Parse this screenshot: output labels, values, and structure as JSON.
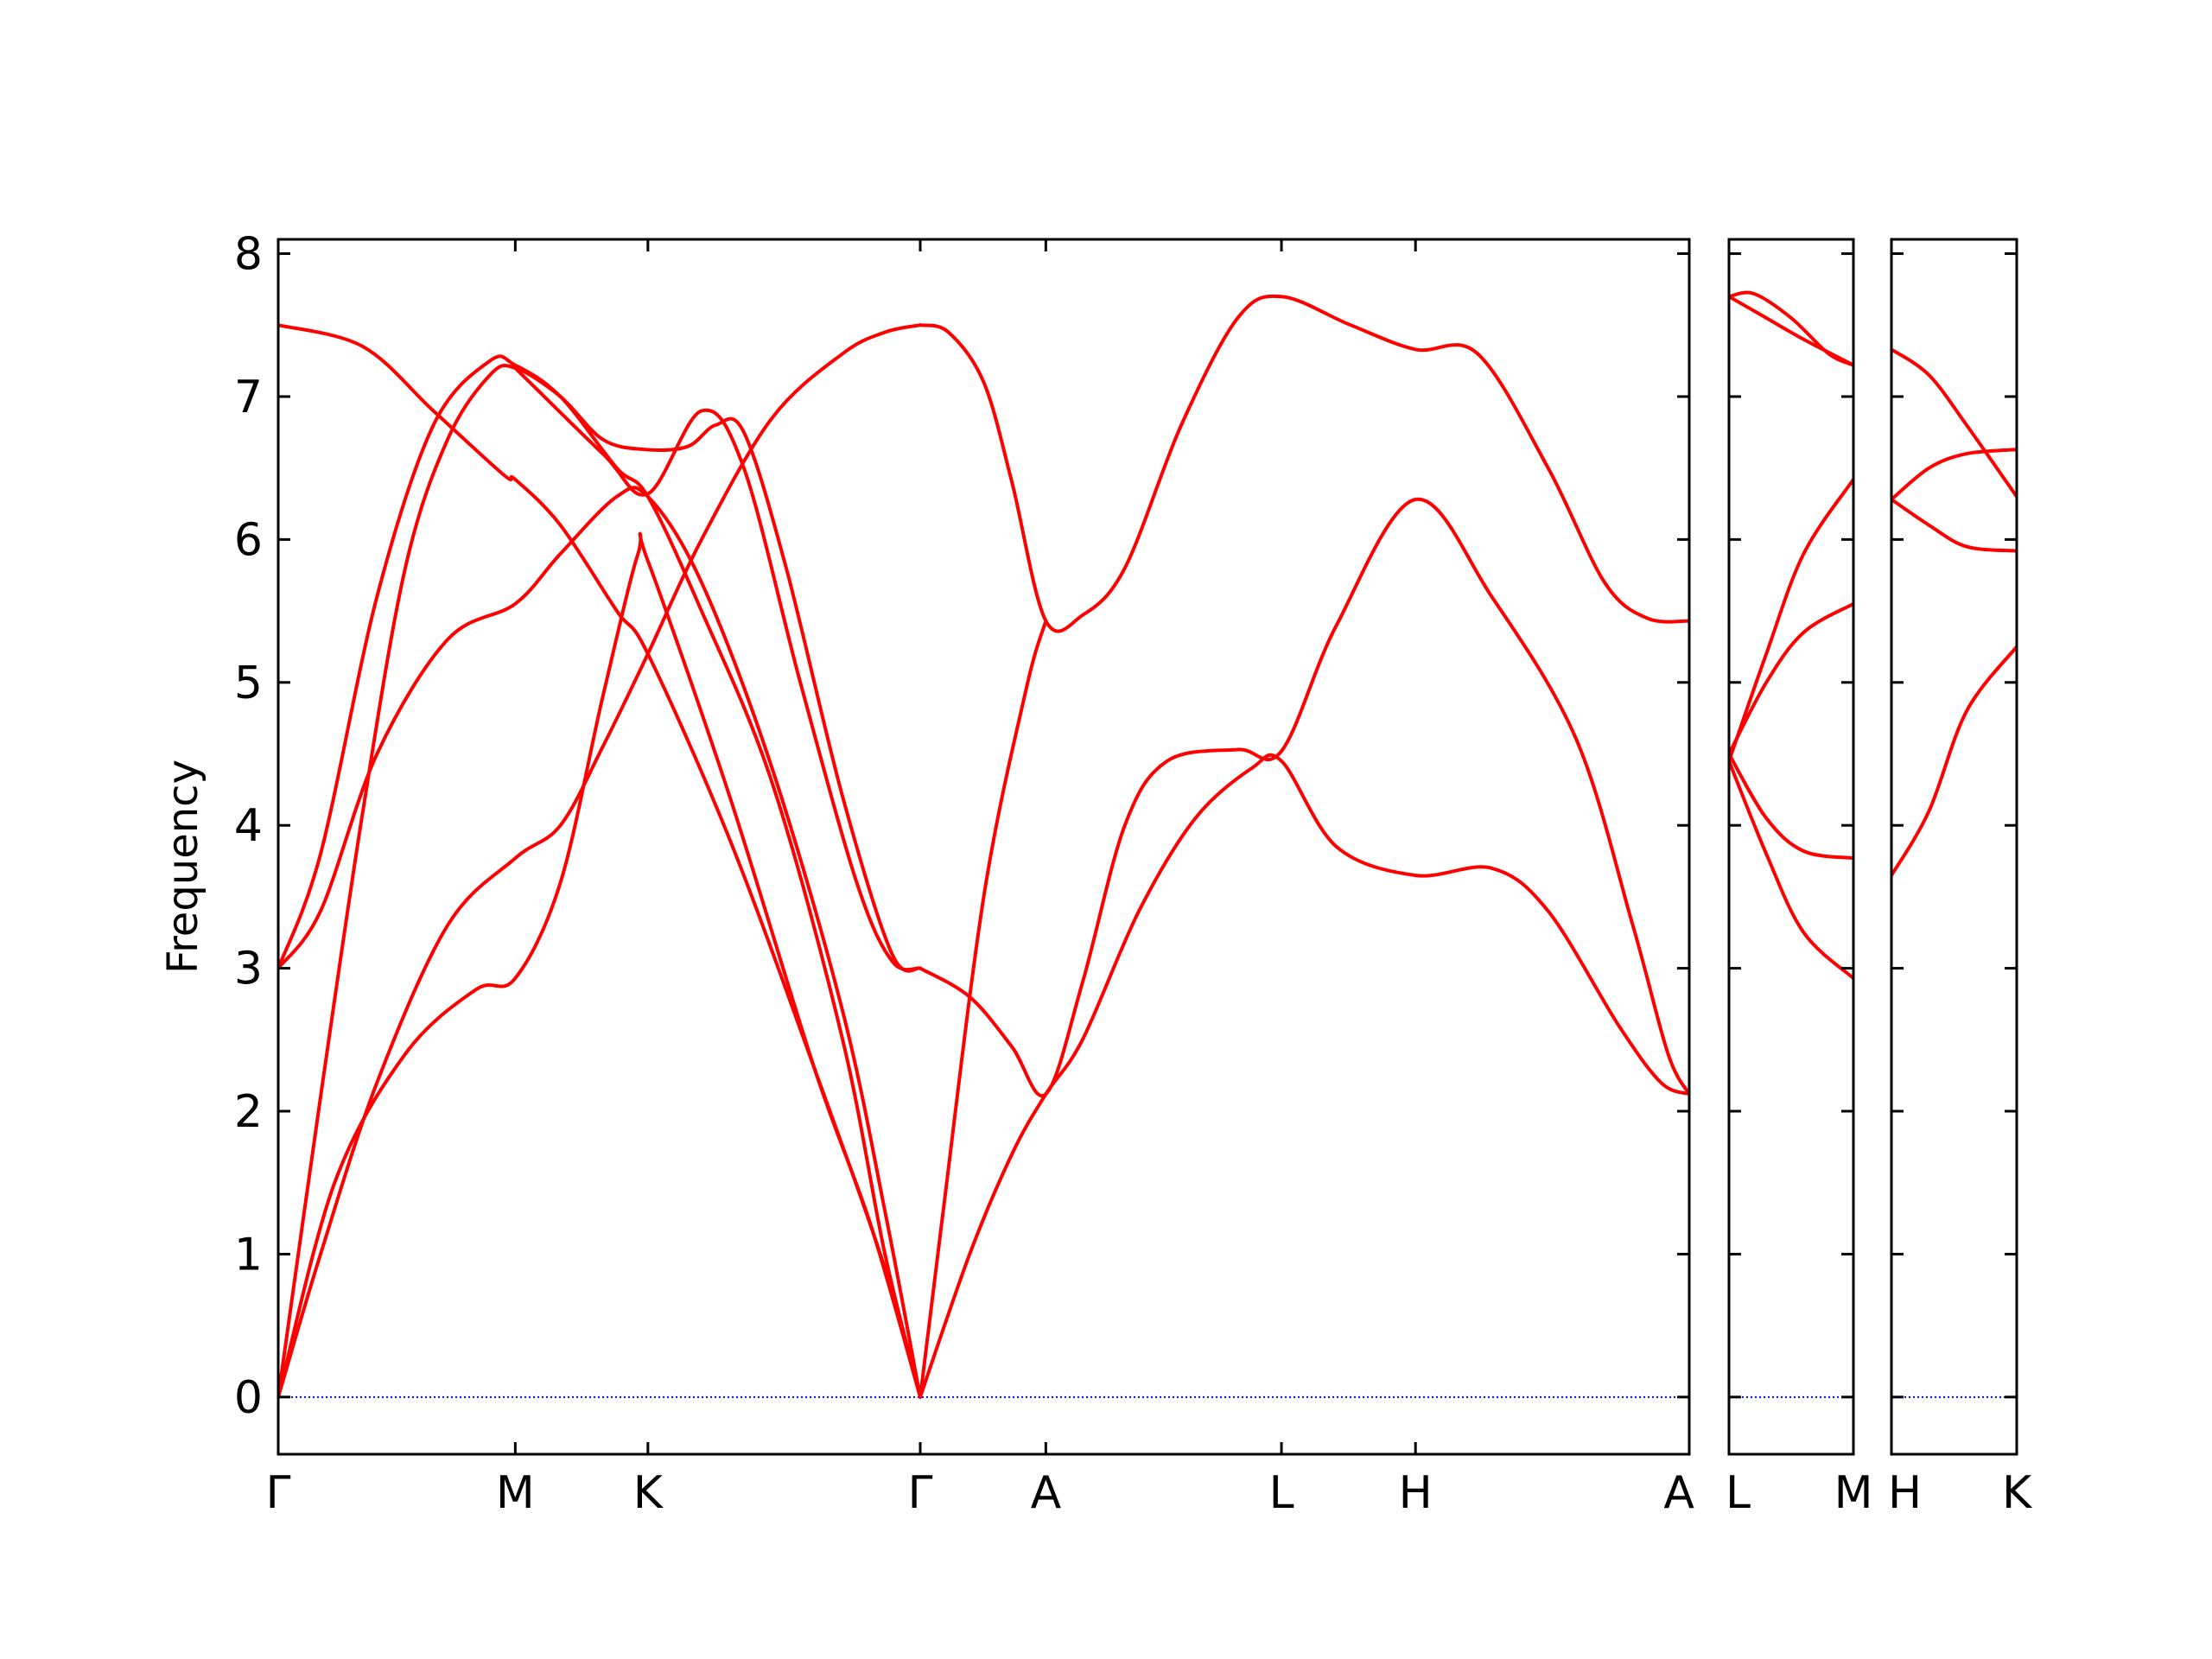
{
  "chart_data": {
    "type": "line",
    "title": "",
    "ylabel": "Frequency",
    "ylim": [
      -0.4,
      8.1
    ],
    "yticks": [
      0,
      1,
      2,
      3,
      4,
      5,
      6,
      7,
      8
    ],
    "grid": false,
    "legend": "none",
    "colors": {
      "bands": "#ff0000",
      "zero_line": "#0000ff",
      "axes": "#000000"
    },
    "x_range_note": "",
    "panels": [
      {
        "xlim": [
          0,
          10.0
        ],
        "ticks": [
          {
            "x": 0.0,
            "label": "Γ"
          },
          {
            "x": 1.68,
            "label": "M"
          },
          {
            "x": 2.62,
            "label": "K"
          },
          {
            "x": 4.55,
            "label": "Γ"
          },
          {
            "x": 5.44,
            "label": "A"
          },
          {
            "x": 7.11,
            "label": "L"
          },
          {
            "x": 8.06,
            "label": "H"
          },
          {
            "x": 10.0,
            "label": "A"
          }
        ],
        "bands": [
          {
            "points": [
              [
                0,
                7.5
              ],
              [
                0.6,
                7.35
              ],
              [
                1.1,
                6.9
              ],
              [
                1.6,
                6.45
              ],
              [
                1.68,
                6.42
              ],
              [
                2.0,
                6.1
              ],
              [
                2.4,
                5.5
              ],
              [
                2.62,
                5.2
              ],
              [
                3.2,
                3.9
              ],
              [
                3.8,
                2.3
              ],
              [
                4.3,
                0.9
              ],
              [
                4.55,
                0.0
              ]
            ]
          },
          {
            "points": [
              [
                0,
                3.0
              ],
              [
                0.3,
                3.4
              ],
              [
                0.7,
                4.5
              ],
              [
                1.2,
                5.3
              ],
              [
                1.68,
                5.55
              ],
              [
                2.0,
                5.9
              ],
              [
                2.4,
                6.3
              ],
              [
                2.62,
                6.3
              ],
              [
                3.0,
                5.7
              ],
              [
                3.5,
                4.4
              ],
              [
                4.0,
                2.7
              ],
              [
                4.3,
                1.3
              ],
              [
                4.55,
                0.0
              ]
            ]
          },
          {
            "points": [
              [
                0,
                3.0
              ],
              [
                0.3,
                3.8
              ],
              [
                0.7,
                5.6
              ],
              [
                1.1,
                6.8
              ],
              [
                1.5,
                7.25
              ],
              [
                1.68,
                7.22
              ],
              [
                2.0,
                7.0
              ],
              [
                2.4,
                6.5
              ],
              [
                2.62,
                6.3
              ],
              [
                3.0,
                5.5
              ],
              [
                3.5,
                4.3
              ],
              [
                4.0,
                2.5
              ],
              [
                4.3,
                1.0
              ],
              [
                4.55,
                0.0
              ]
            ]
          },
          {
            "points": [
              [
                0,
                0.0
              ],
              [
                0.4,
                1.5
              ],
              [
                0.9,
                2.4
              ],
              [
                1.4,
                2.85
              ],
              [
                1.68,
                2.93
              ],
              [
                2.0,
                3.6
              ],
              [
                2.3,
                4.9
              ],
              [
                2.55,
                5.9
              ],
              [
                2.62,
                5.85
              ],
              [
                3.2,
                4.2
              ],
              [
                3.8,
                2.3
              ],
              [
                4.2,
                1.2
              ],
              [
                4.55,
                0.0
              ]
            ]
          },
          {
            "points": [
              [
                0,
                0.0
              ],
              [
                0.3,
                1.0
              ],
              [
                0.7,
                2.2
              ],
              [
                1.2,
                3.3
              ],
              [
                1.68,
                3.77
              ],
              [
                2.0,
                4.0
              ],
              [
                2.3,
                4.55
              ],
              [
                2.62,
                5.2
              ],
              [
                3.0,
                6.0
              ],
              [
                3.5,
                6.85
              ],
              [
                4.0,
                7.3
              ],
              [
                4.3,
                7.45
              ],
              [
                4.55,
                7.5
              ]
            ]
          },
          {
            "points": [
              [
                0,
                0.0
              ],
              [
                0.3,
                2.1
              ],
              [
                0.6,
                4.1
              ],
              [
                0.9,
                5.8
              ],
              [
                1.2,
                6.7
              ],
              [
                1.5,
                7.15
              ],
              [
                1.68,
                7.2
              ],
              [
                2.0,
                7.0
              ],
              [
                2.3,
                6.7
              ],
              [
                2.6,
                6.63
              ],
              [
                2.9,
                6.65
              ],
              [
                3.1,
                6.8
              ],
              [
                3.3,
                6.75
              ],
              [
                3.6,
                5.8
              ],
              [
                4.0,
                4.2
              ],
              [
                4.35,
                3.1
              ],
              [
                4.55,
                3.0
              ]
            ]
          },
          {
            "points": [
              [
                1.68,
                7.2
              ],
              [
                2.3,
                6.6
              ],
              [
                2.62,
                6.32
              ],
              [
                3.0,
                6.9
              ],
              [
                3.3,
                6.5
              ],
              [
                3.7,
                5.0
              ],
              [
                4.1,
                3.6
              ],
              [
                4.35,
                3.05
              ],
              [
                4.55,
                3.0
              ]
            ]
          },
          {
            "points": [
              [
                4.55,
                7.5
              ],
              [
                4.75,
                7.45
              ],
              [
                5.0,
                7.1
              ],
              [
                5.2,
                6.4
              ],
              [
                5.44,
                5.43
              ],
              [
                5.7,
                5.47
              ],
              [
                6.0,
                5.8
              ],
              [
                6.4,
                6.8
              ],
              [
                6.8,
                7.55
              ],
              [
                7.11,
                7.7
              ],
              [
                7.6,
                7.5
              ],
              [
                8.06,
                7.33
              ],
              [
                8.5,
                7.3
              ],
              [
                9.0,
                6.5
              ],
              [
                9.4,
                5.7
              ],
              [
                9.7,
                5.45
              ],
              [
                10.0,
                5.43
              ]
            ]
          },
          {
            "points": [
              [
                4.55,
                0.0
              ],
              [
                4.7,
                1.2
              ],
              [
                5.0,
                3.5
              ],
              [
                5.3,
                4.95
              ],
              [
                5.44,
                5.43
              ]
            ]
          },
          {
            "points": [
              [
                4.55,
                0.0
              ],
              [
                4.9,
                1.0
              ],
              [
                5.2,
                1.7
              ],
              [
                5.44,
                2.12
              ],
              [
                5.7,
                2.5
              ],
              [
                6.1,
                3.4
              ],
              [
                6.5,
                4.05
              ],
              [
                6.9,
                4.4
              ],
              [
                7.11,
                4.45
              ],
              [
                7.5,
                3.85
              ],
              [
                8.06,
                3.65
              ],
              [
                8.6,
                3.7
              ],
              [
                9.0,
                3.4
              ],
              [
                9.5,
                2.6
              ],
              [
                9.8,
                2.2
              ],
              [
                10.0,
                2.12
              ]
            ]
          },
          {
            "points": [
              [
                4.55,
                3.0
              ],
              [
                4.9,
                2.8
              ],
              [
                5.2,
                2.45
              ],
              [
                5.44,
                2.12
              ],
              [
                5.7,
                2.9
              ],
              [
                6.0,
                4.0
              ],
              [
                6.3,
                4.45
              ],
              [
                6.8,
                4.53
              ],
              [
                7.11,
                4.52
              ],
              [
                7.5,
                5.4
              ],
              [
                8.06,
                6.28
              ],
              [
                8.6,
                5.6
              ],
              [
                9.2,
                4.6
              ],
              [
                9.6,
                3.3
              ],
              [
                9.85,
                2.4
              ],
              [
                10.0,
                2.12
              ]
            ]
          }
        ]
      },
      {
        "xlim": [
          0,
          1.0
        ],
        "ticks": [
          {
            "x": 0.0,
            "label": "L"
          },
          {
            "x": 1.0,
            "label": "M"
          }
        ],
        "bands": [
          {
            "points": [
              [
                0,
                7.7
              ],
              [
                0.2,
                7.72
              ],
              [
                0.5,
                7.55
              ],
              [
                0.8,
                7.3
              ],
              [
                1.0,
                7.22
              ]
            ]
          },
          {
            "points": [
              [
                0,
                7.7
              ],
              [
                0.3,
                7.55
              ],
              [
                0.6,
                7.4
              ],
              [
                1.0,
                7.22
              ]
            ]
          },
          {
            "points": [
              [
                0,
                4.45
              ],
              [
                0.3,
                5.2
              ],
              [
                0.6,
                5.9
              ],
              [
                1.0,
                6.42
              ]
            ]
          },
          {
            "points": [
              [
                0,
                4.5
              ],
              [
                0.3,
                5.0
              ],
              [
                0.6,
                5.35
              ],
              [
                1.0,
                5.55
              ]
            ]
          },
          {
            "points": [
              [
                0,
                4.5
              ],
              [
                0.3,
                4.05
              ],
              [
                0.6,
                3.82
              ],
              [
                1.0,
                3.77
              ]
            ]
          },
          {
            "points": [
              [
                0,
                4.45
              ],
              [
                0.3,
                3.8
              ],
              [
                0.6,
                3.25
              ],
              [
                1.0,
                2.93
              ]
            ]
          }
        ]
      },
      {
        "xlim": [
          0,
          1.0
        ],
        "ticks": [
          {
            "x": 0.0,
            "label": "H"
          },
          {
            "x": 1.0,
            "label": "K"
          }
        ],
        "bands": [
          {
            "points": [
              [
                0,
                7.33
              ],
              [
                0.3,
                7.15
              ],
              [
                0.6,
                6.8
              ],
              [
                1.0,
                6.3
              ]
            ]
          },
          {
            "points": [
              [
                0,
                6.28
              ],
              [
                0.3,
                6.5
              ],
              [
                0.6,
                6.6
              ],
              [
                1.0,
                6.63
              ]
            ]
          },
          {
            "points": [
              [
                0,
                6.28
              ],
              [
                0.3,
                6.1
              ],
              [
                0.6,
                5.95
              ],
              [
                1.0,
                5.92
              ]
            ]
          },
          {
            "points": [
              [
                0,
                3.65
              ],
              [
                0.3,
                4.1
              ],
              [
                0.6,
                4.8
              ],
              [
                1.0,
                5.25
              ]
            ]
          }
        ]
      }
    ]
  }
}
